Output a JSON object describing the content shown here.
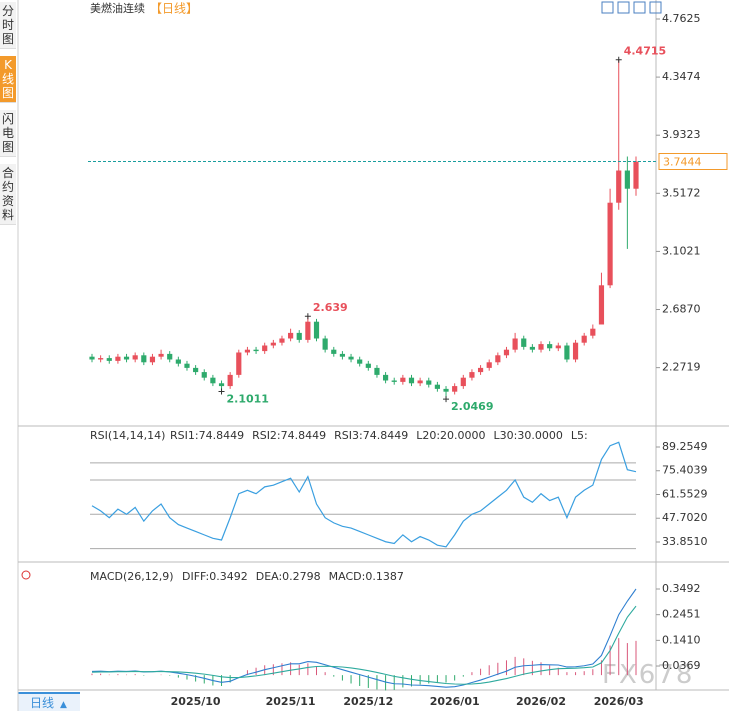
{
  "sidebar": [
    "分时图",
    "K线图",
    "闪电图",
    "合约资料"
  ],
  "footer_tab": "日线",
  "watermark": "FX678",
  "chart_data": [
    {
      "type": "candlestick",
      "title": "美燃油连续",
      "subtitle": "【日线】",
      "up_color": "#e8505b",
      "down_color": "#2eaa6c",
      "last_color": "#1a9e9e",
      "categories": [
        null,
        null,
        null,
        null,
        null,
        null,
        null,
        null,
        null,
        null,
        null,
        null,
        "2025/10",
        null,
        null,
        null,
        null,
        null,
        null,
        null,
        null,
        null,
        null,
        "2025/11",
        null,
        null,
        null,
        null,
        null,
        null,
        null,
        null,
        "2025/12",
        null,
        null,
        null,
        null,
        null,
        null,
        null,
        null,
        null,
        "2026/01",
        null,
        null,
        null,
        null,
        null,
        null,
        null,
        null,
        null,
        "2026/02",
        null,
        null,
        null,
        null,
        null,
        null,
        null,
        null,
        "2026/03",
        null,
        null
      ],
      "candles": {
        "open": [
          2.35,
          2.33,
          2.34,
          2.32,
          2.35,
          2.33,
          2.36,
          2.31,
          2.35,
          2.37,
          2.33,
          2.3,
          2.27,
          2.24,
          2.2,
          2.16,
          2.14,
          2.22,
          2.38,
          2.4,
          2.39,
          2.43,
          2.45,
          2.48,
          2.52,
          2.47,
          2.6,
          2.48,
          2.4,
          2.37,
          2.35,
          2.33,
          2.3,
          2.27,
          2.22,
          2.18,
          2.17,
          2.2,
          2.16,
          2.18,
          2.15,
          2.12,
          2.1,
          2.14,
          2.2,
          2.24,
          2.27,
          2.31,
          2.36,
          2.4,
          2.48,
          2.42,
          2.4,
          2.44,
          2.41,
          2.43,
          2.33,
          2.45,
          2.5,
          2.58,
          2.86,
          3.45,
          3.68,
          3.55
        ],
        "high": [
          2.37,
          2.36,
          2.36,
          2.37,
          2.37,
          2.38,
          2.38,
          2.37,
          2.4,
          2.39,
          2.35,
          2.32,
          2.29,
          2.26,
          2.22,
          2.18,
          2.24,
          2.4,
          2.42,
          2.42,
          2.45,
          2.47,
          2.5,
          2.55,
          2.54,
          2.639,
          2.62,
          2.5,
          2.42,
          2.39,
          2.37,
          2.35,
          2.32,
          2.29,
          2.24,
          2.2,
          2.22,
          2.22,
          2.2,
          2.2,
          2.17,
          2.14,
          2.16,
          2.22,
          2.26,
          2.29,
          2.33,
          2.38,
          2.42,
          2.52,
          2.5,
          2.44,
          2.46,
          2.46,
          2.45,
          2.45,
          2.47,
          2.52,
          2.58,
          2.95,
          3.55,
          4.4715,
          3.78,
          3.78
        ],
        "low": [
          2.31,
          2.31,
          2.3,
          2.3,
          2.31,
          2.31,
          2.29,
          2.29,
          2.33,
          2.31,
          2.28,
          2.25,
          2.22,
          2.18,
          2.14,
          2.1011,
          2.12,
          2.2,
          2.36,
          2.37,
          2.37,
          2.41,
          2.43,
          2.46,
          2.45,
          2.45,
          2.46,
          2.38,
          2.35,
          2.33,
          2.31,
          2.28,
          2.25,
          2.2,
          2.16,
          2.15,
          2.15,
          2.14,
          2.14,
          2.13,
          2.1,
          2.0469,
          2.08,
          2.12,
          2.18,
          2.22,
          2.25,
          2.29,
          2.34,
          2.38,
          2.4,
          2.38,
          2.38,
          2.39,
          2.39,
          2.31,
          2.31,
          2.43,
          2.48,
          2.78,
          2.84,
          3.4,
          3.12,
          3.5
        ],
        "close": [
          2.33,
          2.34,
          2.32,
          2.35,
          2.33,
          2.36,
          2.31,
          2.35,
          2.37,
          2.33,
          2.3,
          2.27,
          2.24,
          2.2,
          2.16,
          2.14,
          2.22,
          2.38,
          2.4,
          2.39,
          2.43,
          2.45,
          2.48,
          2.52,
          2.47,
          2.6,
          2.48,
          2.4,
          2.37,
          2.35,
          2.33,
          2.3,
          2.27,
          2.22,
          2.18,
          2.17,
          2.2,
          2.16,
          2.18,
          2.15,
          2.12,
          2.1,
          2.14,
          2.2,
          2.24,
          2.27,
          2.31,
          2.36,
          2.4,
          2.48,
          2.42,
          2.4,
          2.44,
          2.41,
          2.43,
          2.33,
          2.45,
          2.5,
          2.55,
          2.86,
          3.45,
          3.68,
          3.55,
          3.7444
        ]
      },
      "ylim": [
        1.862,
        4.841
      ],
      "yticks": [
        4.7625,
        4.3474,
        3.9323,
        3.5172,
        3.1021,
        {
          "value": 2.687,
          "label": "2.6870"
        },
        2.2719
      ]
    },
    {
      "type": "line",
      "title": "RSI(14,14,14)",
      "legend": [
        {
          "text": "RSI1:74.8449",
          "color": "#3a8fd9"
        },
        {
          "text": "RSI2:74.8449",
          "color": "#3a8fd9"
        },
        {
          "text": "RSI3:74.8449",
          "color": "#3a8fd9"
        },
        {
          "text": "L20:20.0000",
          "color": "#aaaaaa"
        },
        {
          "text": "L30:30.0000",
          "color": "#aaaaaa"
        },
        {
          "text": "L5:",
          "color": "#aaaaaa"
        }
      ],
      "series": [
        {
          "color": "#3a9fe0",
          "values": [
            55,
            52,
            48,
            53,
            50,
            54,
            46,
            52,
            56,
            48,
            44,
            42,
            40,
            38,
            36,
            35,
            48,
            62,
            64,
            62,
            66,
            67,
            69,
            71,
            63,
            72,
            56,
            48,
            45,
            43,
            42,
            40,
            38,
            36,
            34,
            33,
            38,
            34,
            37,
            35,
            32,
            31,
            38,
            46,
            50,
            52,
            56,
            60,
            64,
            70,
            60,
            57,
            62,
            58,
            60,
            48,
            60,
            64,
            67,
            82,
            90,
            92,
            76,
            74.8449
          ]
        }
      ],
      "levels": [
        80,
        70,
        50,
        30
      ],
      "ylim": [
        23.35,
        100.33
      ],
      "yticks": [
        89.2549,
        75.4039,
        61.5529,
        {
          "value": 47.702,
          "label": "47.7020"
        },
        {
          "value": 33.851,
          "label": "33.8510"
        }
      ]
    },
    {
      "type": "macd",
      "title": "MACD(26,12,9)",
      "legend": [
        {
          "text": "DIFF:0.3492",
          "color": "#3a8fd9"
        },
        {
          "text": "DEA:0.2798",
          "color": "#2eaa9e"
        },
        {
          "text": "MACD:0.1387",
          "color": "#3a8fd9"
        }
      ],
      "series": [
        {
          "color": "#2f7fd0",
          "values": [
            0.015,
            0.016,
            0.014,
            0.016,
            0.015,
            0.017,
            0.013,
            0.014,
            0.016,
            0.013,
            0.008,
            0.002,
            -0.005,
            -0.013,
            -0.022,
            -0.029,
            -0.025,
            -0.01,
            0.003,
            0.012,
            0.022,
            0.03,
            0.038,
            0.046,
            0.046,
            0.055,
            0.052,
            0.042,
            0.032,
            0.022,
            0.012,
            0.002,
            -0.008,
            -0.018,
            -0.028,
            -0.035,
            -0.036,
            -0.04,
            -0.041,
            -0.043,
            -0.046,
            -0.049,
            -0.047,
            -0.04,
            -0.03,
            -0.02,
            -0.008,
            0.004,
            0.016,
            0.032,
            0.038,
            0.04,
            0.043,
            0.042,
            0.041,
            0.033,
            0.034,
            0.038,
            0.045,
            0.08,
            0.16,
            0.245,
            0.3,
            0.3492
          ]
        },
        {
          "color": "#2eaa9e",
          "values": [
            0.012,
            0.013,
            0.013,
            0.014,
            0.014,
            0.015,
            0.014,
            0.014,
            0.015,
            0.014,
            0.013,
            0.011,
            0.008,
            0.004,
            -0.001,
            -0.007,
            -0.01,
            -0.01,
            -0.007,
            -0.003,
            0.002,
            0.008,
            0.014,
            0.02,
            0.025,
            0.031,
            0.035,
            0.036,
            0.035,
            0.033,
            0.029,
            0.024,
            0.018,
            0.011,
            0.003,
            -0.005,
            -0.011,
            -0.017,
            -0.022,
            -0.026,
            -0.03,
            -0.034,
            -0.036,
            -0.037,
            -0.036,
            -0.033,
            -0.028,
            -0.021,
            -0.014,
            -0.005,
            0.004,
            0.011,
            0.017,
            0.022,
            0.026,
            0.027,
            0.028,
            0.03,
            0.033,
            0.05,
            0.1,
            0.17,
            0.235,
            0.2798
          ]
        }
      ],
      "histogram": [
        0.006,
        0.006,
        0.002,
        0.004,
        0.002,
        0.004,
        -0.002,
        0,
        0.002,
        -0.002,
        -0.01,
        -0.018,
        -0.026,
        -0.034,
        -0.042,
        -0.044,
        -0.03,
        0,
        0.02,
        0.03,
        0.04,
        0.044,
        0.048,
        0.052,
        0.042,
        0.048,
        0.034,
        0.012,
        -0.006,
        -0.022,
        -0.034,
        -0.044,
        -0.052,
        -0.058,
        -0.062,
        -0.06,
        -0.05,
        -0.046,
        -0.038,
        -0.034,
        -0.032,
        -0.03,
        -0.022,
        -0.006,
        0.012,
        0.026,
        0.04,
        0.05,
        0.06,
        0.074,
        0.068,
        0.058,
        0.052,
        0.04,
        0.03,
        0.012,
        0.012,
        0.016,
        0.024,
        0.06,
        0.12,
        0.15,
        0.13,
        0.1387
      ],
      "ylim": [
        -0.0603,
        0.4424
      ],
      "yticks": [
        0.3492,
        0.2451,
        {
          "value": 0.141,
          "label": "0.1410"
        },
        0.0369
      ]
    }
  ]
}
